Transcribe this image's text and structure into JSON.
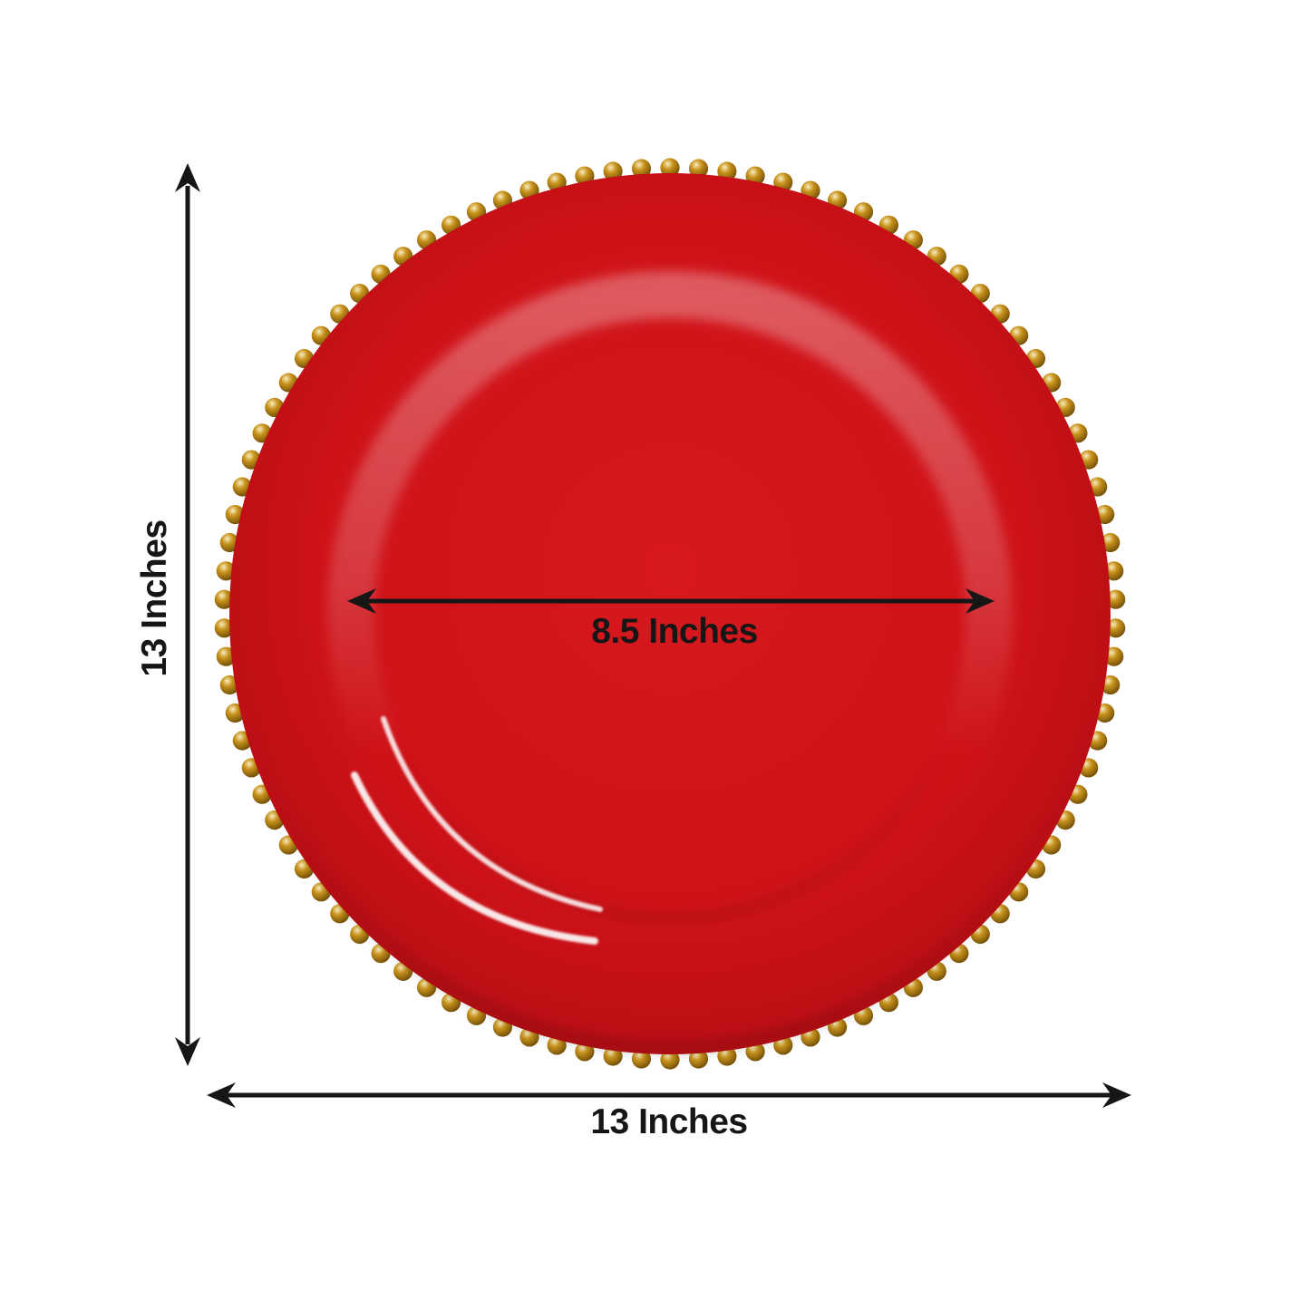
{
  "labels": {
    "vertical_height": "13 Inches",
    "horizontal_width": "13 Inches",
    "inner_diameter": "8.5 Inches"
  },
  "colors": {
    "background": "#ffffff",
    "plate_red_light": "#d6191f",
    "plate_red": "#ce1218",
    "plate_red_deep": "#b90e14",
    "bead_gold_light": "#f8ecc0",
    "bead_gold": "#c9941c",
    "bead_gold_dark": "#8a610d",
    "bead_gold_deep": "#5f4106",
    "dimension_line": "#161616"
  }
}
